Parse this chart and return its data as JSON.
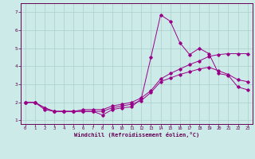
{
  "xlabel": "Windchill (Refroidissement éolien,°C)",
  "xlim": [
    -0.5,
    23.5
  ],
  "ylim": [
    0.8,
    7.5
  ],
  "xticks": [
    0,
    1,
    2,
    3,
    4,
    5,
    6,
    7,
    8,
    9,
    10,
    11,
    12,
    13,
    14,
    15,
    16,
    17,
    18,
    19,
    20,
    21,
    22,
    23
  ],
  "yticks": [
    1,
    2,
    3,
    4,
    5,
    6,
    7
  ],
  "background_color": "#cceae8",
  "grid_color": "#aad0cc",
  "line_color": "#990088",
  "line1_x": [
    0,
    1,
    2,
    3,
    4,
    5,
    6,
    7,
    8,
    9,
    10,
    11,
    12,
    13,
    14,
    15,
    16,
    17,
    18,
    19,
    20,
    21,
    22,
    23
  ],
  "line1_y": [
    2.0,
    2.0,
    1.6,
    1.5,
    1.5,
    1.5,
    1.5,
    1.5,
    1.3,
    1.6,
    1.7,
    1.75,
    2.2,
    4.5,
    6.85,
    6.5,
    5.3,
    4.65,
    5.0,
    4.7,
    3.6,
    3.5,
    2.85,
    2.7
  ],
  "line2_x": [
    0,
    1,
    2,
    3,
    4,
    5,
    6,
    7,
    8,
    9,
    10,
    11,
    12,
    13,
    14,
    15,
    16,
    17,
    18,
    19,
    20,
    21,
    22,
    23
  ],
  "line2_y": [
    2.0,
    2.0,
    1.7,
    1.5,
    1.5,
    1.5,
    1.5,
    1.5,
    1.5,
    1.7,
    1.8,
    1.9,
    2.1,
    2.55,
    3.15,
    3.35,
    3.55,
    3.7,
    3.85,
    3.95,
    3.75,
    3.55,
    3.25,
    3.15
  ],
  "line3_x": [
    0,
    1,
    2,
    3,
    4,
    5,
    6,
    7,
    8,
    9,
    10,
    11,
    12,
    13,
    14,
    15,
    16,
    17,
    18,
    19,
    20,
    21,
    22,
    23
  ],
  "line3_y": [
    2.0,
    2.0,
    1.7,
    1.5,
    1.5,
    1.5,
    1.6,
    1.6,
    1.6,
    1.8,
    1.9,
    2.0,
    2.25,
    2.65,
    3.3,
    3.6,
    3.85,
    4.1,
    4.3,
    4.55,
    4.65,
    4.7,
    4.7,
    4.7
  ]
}
